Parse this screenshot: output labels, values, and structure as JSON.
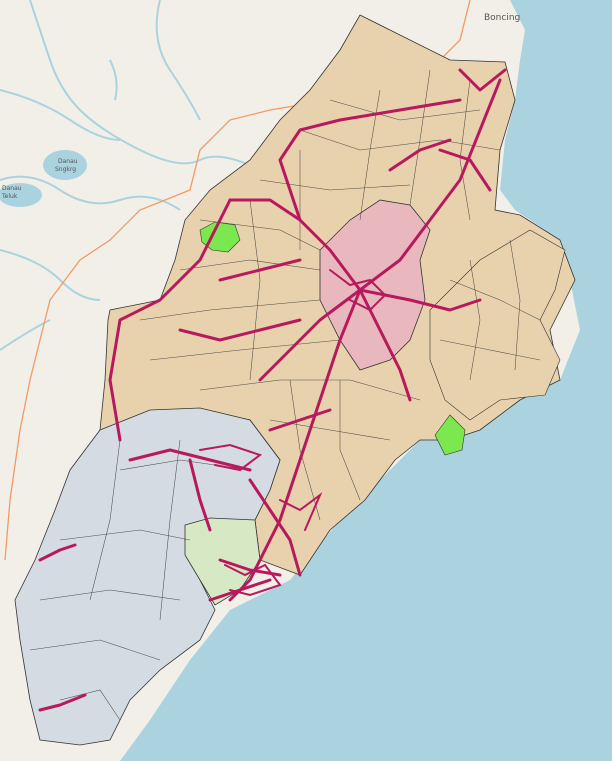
{
  "map": {
    "place_labels": [
      {
        "id": "boncing",
        "text": "Boncing"
      },
      {
        "id": "lake-a",
        "text": "Danau"
      },
      {
        "id": "lake-a2",
        "text": "Sngkrg"
      },
      {
        "id": "lake-b",
        "text": "Danau"
      },
      {
        "id": "lake-b2",
        "text": "Teluk"
      }
    ],
    "colors": {
      "sea": "#aad3df",
      "land": "#f2efe9",
      "water": "#aad3df",
      "region_tan": "#e8d2ae",
      "region_blue": "#d5dbe3",
      "region_pink": "#e8b8be",
      "region_light_green": "#d7e9c4",
      "park_green": "#7ce84f",
      "road_network": "#b8195d",
      "boundary_orange": "#f39a63",
      "borders": "#333333"
    }
  }
}
